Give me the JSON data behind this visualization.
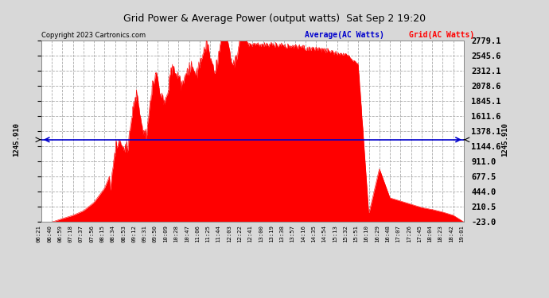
{
  "title": "Grid Power & Average Power (output watts)  Sat Sep 2 19:20",
  "copyright": "Copyright 2023 Cartronics.com",
  "legend_average": "Average(AC Watts)",
  "legend_grid": "Grid(AC Watts)",
  "average_value": 1245.91,
  "average_label": "1245.910",
  "yticks_right": [
    2779.1,
    2545.6,
    2312.1,
    2078.6,
    1845.1,
    1611.6,
    1378.1,
    1144.6,
    911.0,
    677.5,
    444.0,
    210.5,
    -23.0
  ],
  "ymin": -23.0,
  "ymax": 2779.1,
  "bg_color": "#d8d8d8",
  "plot_bg_color": "#ffffff",
  "fill_color": "#ff0000",
  "line_color": "#ff0000",
  "avg_line_color": "#0000cc",
  "grid_color": "#aaaaaa",
  "title_color": "#000000",
  "copyright_color": "#000000",
  "xtick_labels": [
    "06:21",
    "06:40",
    "06:59",
    "07:18",
    "07:37",
    "07:56",
    "08:15",
    "08:34",
    "08:53",
    "09:12",
    "09:31",
    "09:50",
    "10:09",
    "10:28",
    "10:47",
    "11:06",
    "11:25",
    "11:44",
    "12:03",
    "12:22",
    "12:41",
    "13:00",
    "13:19",
    "13:38",
    "13:57",
    "14:16",
    "14:35",
    "14:54",
    "15:13",
    "15:32",
    "15:51",
    "16:10",
    "16:29",
    "16:48",
    "17:07",
    "17:26",
    "17:45",
    "18:04",
    "18:23",
    "18:42",
    "19:01"
  ]
}
